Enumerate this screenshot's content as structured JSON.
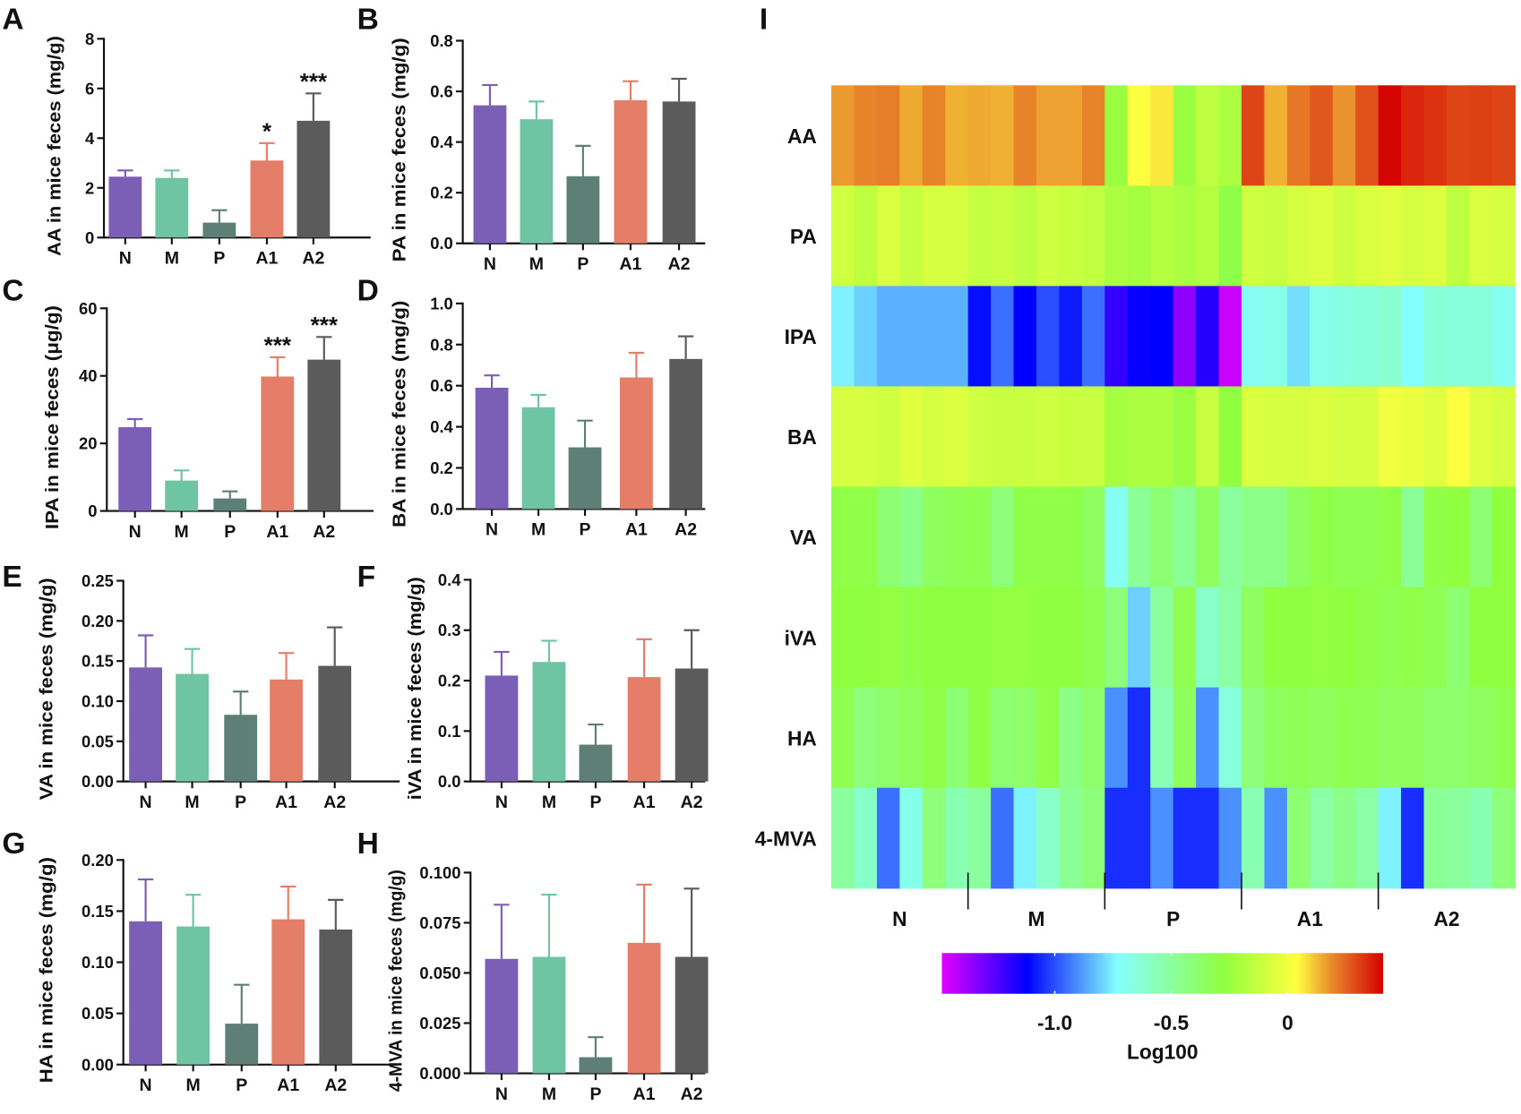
{
  "group_colors": {
    "N": "#7b5eb5",
    "M": "#6fc4a4",
    "P": "#5e7f76",
    "A1": "#e47e69",
    "A2": "#5b5b5b"
  },
  "chart_data": [
    {
      "panel": "A",
      "type": "bar",
      "categories": [
        "N",
        "M",
        "P",
        "A1",
        "A2"
      ],
      "ylabel": "AA in mice feces (mg/g)",
      "ylim": [
        0,
        8
      ],
      "yticks": [
        "0",
        "2",
        "4",
        "6",
        "8"
      ],
      "ytick_values": [
        0,
        2,
        4,
        6,
        8
      ],
      "values": [
        2.45,
        2.4,
        0.6,
        3.1,
        4.7
      ],
      "error_upper": [
        2.7,
        2.7,
        1.1,
        3.8,
        5.8
      ],
      "annotations": [
        "",
        "",
        "",
        "*",
        "***"
      ]
    },
    {
      "panel": "B",
      "type": "bar",
      "categories": [
        "N",
        "M",
        "P",
        "A1",
        "A2"
      ],
      "ylabel": "PA in mice feces (mg/g)",
      "ylim": [
        0,
        0.8
      ],
      "yticks": [
        "0.0",
        "0.2",
        "0.4",
        "0.6",
        "0.8"
      ],
      "ytick_values": [
        0,
        0.2,
        0.4,
        0.6,
        0.8
      ],
      "values": [
        0.545,
        0.49,
        0.265,
        0.565,
        0.56
      ],
      "error_upper": [
        0.625,
        0.56,
        0.385,
        0.64,
        0.65
      ],
      "annotations": [
        "",
        "",
        "",
        "",
        ""
      ]
    },
    {
      "panel": "C",
      "type": "bar",
      "categories": [
        "N",
        "M",
        "P",
        "A1",
        "A2"
      ],
      "ylabel": "IPA in mice feces (μg/g)",
      "ylim": [
        0,
        60
      ],
      "yticks": [
        "0",
        "20",
        "40",
        "60"
      ],
      "ytick_values": [
        0,
        20,
        40,
        60
      ],
      "values": [
        24.8,
        9,
        3.7,
        39.8,
        44.8
      ],
      "error_upper": [
        27.2,
        12,
        5.8,
        45.5,
        51.5
      ],
      "annotations": [
        "",
        "",
        "",
        "***",
        "***"
      ]
    },
    {
      "panel": "D",
      "type": "bar",
      "categories": [
        "N",
        "M",
        "P",
        "A1",
        "A2"
      ],
      "ylabel": "BA in mice feces (mg/g)",
      "ylim": [
        0,
        1.0
      ],
      "yticks": [
        "0.0",
        "0.2",
        "0.4",
        "0.6",
        "0.8",
        "1.0"
      ],
      "ytick_values": [
        0,
        0.2,
        0.4,
        0.6,
        0.8,
        1.0
      ],
      "values": [
        0.59,
        0.495,
        0.3,
        0.64,
        0.73
      ],
      "error_upper": [
        0.65,
        0.555,
        0.43,
        0.76,
        0.84
      ],
      "annotations": [
        "",
        "",
        "",
        "",
        ""
      ]
    },
    {
      "panel": "E",
      "type": "bar",
      "categories": [
        "N",
        "M",
        "P",
        "A1",
        "A2"
      ],
      "ylabel": "VA in mice feces (mg/g)",
      "ylim": [
        0,
        0.25
      ],
      "yticks": [
        "0.00",
        "0.05",
        "0.10",
        "0.15",
        "0.20",
        "0.25"
      ],
      "ytick_values": [
        0,
        0.05,
        0.1,
        0.15,
        0.2,
        0.25
      ],
      "values": [
        0.142,
        0.134,
        0.083,
        0.127,
        0.144
      ],
      "error_upper": [
        0.182,
        0.165,
        0.112,
        0.16,
        0.192
      ],
      "annotations": [
        "",
        "",
        "",
        "",
        ""
      ]
    },
    {
      "panel": "F",
      "type": "bar",
      "categories": [
        "N",
        "M",
        "P",
        "A1",
        "A2"
      ],
      "ylabel": "iVA in mice feces (mg/g)",
      "ylim": [
        0,
        0.4
      ],
      "yticks": [
        "0.0",
        "0.1",
        "0.2",
        "0.3",
        "0.4"
      ],
      "ytick_values": [
        0,
        0.1,
        0.2,
        0.3,
        0.4
      ],
      "values": [
        0.21,
        0.237,
        0.073,
        0.207,
        0.224
      ],
      "error_upper": [
        0.257,
        0.279,
        0.113,
        0.282,
        0.3
      ],
      "annotations": [
        "",
        "",
        "",
        "",
        ""
      ]
    },
    {
      "panel": "G",
      "type": "bar",
      "categories": [
        "N",
        "M",
        "P",
        "A1",
        "A2"
      ],
      "ylabel": "HA in mice feces (mg/g)",
      "ylim": [
        0,
        0.2
      ],
      "yticks": [
        "0.00",
        "0.05",
        "0.10",
        "0.15",
        "0.20"
      ],
      "ytick_values": [
        0,
        0.05,
        0.1,
        0.15,
        0.2
      ],
      "values": [
        0.14,
        0.135,
        0.04,
        0.142,
        0.132
      ],
      "error_upper": [
        0.181,
        0.166,
        0.078,
        0.174,
        0.161
      ],
      "annotations": [
        "",
        "",
        "",
        "",
        ""
      ]
    },
    {
      "panel": "H",
      "type": "bar",
      "categories": [
        "N",
        "M",
        "P",
        "A1",
        "A2"
      ],
      "ylabel": "4-MVA in mice feces (mg/g)",
      "ylim": [
        0,
        0.1
      ],
      "yticks": [
        "0.000",
        "0.025",
        "0.050",
        "0.075",
        "0.100"
      ],
      "ytick_values": [
        0,
        0.025,
        0.05,
        0.075,
        0.1
      ],
      "values": [
        0.057,
        0.058,
        0.008,
        0.065,
        0.058
      ],
      "error_upper": [
        0.084,
        0.089,
        0.018,
        0.094,
        0.092
      ],
      "annotations": [
        "",
        "",
        "",
        "",
        ""
      ]
    },
    {
      "panel": "I",
      "type": "heatmap",
      "rows": [
        "AA",
        "PA",
        "IPA",
        "BA",
        "VA",
        "iVA",
        "HA",
        "4-MVA"
      ],
      "groups": [
        "N",
        "M",
        "P",
        "A1",
        "A2"
      ],
      "samples_per_group": 6,
      "colorbar": {
        "label": "Log100",
        "ticks": [
          "-1.0",
          "-0.5",
          "0"
        ],
        "tick_values": [
          -1.0,
          -0.5,
          0
        ],
        "range": [
          -1.485,
          0.41
        ],
        "stops": [
          [
            -1.485,
            "#e000ff"
          ],
          [
            -1.12,
            "#0000ff"
          ],
          [
            -0.73,
            "#85ffff"
          ],
          [
            -0.28,
            "#90ff40"
          ],
          [
            0.04,
            "#ffff40"
          ],
          [
            0.19,
            "#e88a2c"
          ],
          [
            0.41,
            "#d40000"
          ]
        ]
      },
      "values": [
        [
          0.17,
          0.2,
          0.21,
          0.15,
          0.2,
          0.14,
          0.15,
          0.14,
          0.2,
          0.16,
          0.16,
          0.2,
          -0.25,
          0.03,
          0.07,
          -0.25,
          -0.15,
          -0.2,
          0.3,
          0.14,
          0.22,
          0.27,
          0.18,
          0.28,
          0.4,
          0.35,
          0.33,
          0.3,
          0.31,
          0.3
        ],
        [
          -0.1,
          -0.15,
          -0.07,
          -0.12,
          -0.08,
          -0.08,
          -0.13,
          -0.12,
          -0.15,
          -0.1,
          -0.12,
          -0.14,
          -0.2,
          -0.22,
          -0.18,
          -0.2,
          -0.17,
          -0.3,
          -0.1,
          -0.12,
          -0.08,
          -0.06,
          -0.1,
          -0.07,
          -0.05,
          -0.08,
          -0.06,
          -0.15,
          -0.07,
          -0.08
        ],
        [
          -0.75,
          -0.8,
          -0.85,
          -0.85,
          -0.85,
          -0.85,
          -1.1,
          -0.95,
          -1.12,
          -1.0,
          -1.08,
          -0.95,
          -1.2,
          -1.13,
          -1.12,
          -1.35,
          -1.18,
          -1.45,
          -0.7,
          -0.68,
          -0.78,
          -0.68,
          -0.66,
          -0.65,
          -0.62,
          -0.72,
          -0.64,
          -0.65,
          -0.64,
          -0.7
        ],
        [
          -0.08,
          -0.08,
          -0.1,
          -0.05,
          -0.08,
          -0.06,
          -0.1,
          -0.12,
          -0.12,
          -0.1,
          -0.12,
          -0.12,
          -0.22,
          -0.2,
          -0.2,
          -0.25,
          -0.12,
          -0.28,
          -0.07,
          -0.08,
          -0.08,
          -0.06,
          -0.08,
          -0.08,
          0.0,
          -0.02,
          -0.05,
          0.03,
          -0.05,
          -0.08
        ],
        [
          -0.3,
          -0.3,
          -0.4,
          -0.45,
          -0.35,
          -0.33,
          -0.32,
          -0.42,
          -0.3,
          -0.3,
          -0.3,
          -0.35,
          -0.7,
          -0.48,
          -0.4,
          -0.48,
          -0.35,
          -0.5,
          -0.45,
          -0.45,
          -0.35,
          -0.3,
          -0.32,
          -0.32,
          -0.3,
          -0.48,
          -0.3,
          -0.28,
          -0.4,
          -0.28
        ],
        [
          -0.28,
          -0.28,
          -0.27,
          -0.3,
          -0.28,
          -0.28,
          -0.28,
          -0.27,
          -0.27,
          -0.28,
          -0.28,
          -0.32,
          -0.42,
          -0.8,
          -0.5,
          -0.32,
          -0.6,
          -0.52,
          -0.35,
          -0.28,
          -0.28,
          -0.27,
          -0.28,
          -0.3,
          -0.32,
          -0.3,
          -0.33,
          -0.4,
          -0.28,
          -0.28
        ],
        [
          -0.32,
          -0.42,
          -0.38,
          -0.35,
          -0.3,
          -0.4,
          -0.3,
          -0.4,
          -0.38,
          -0.3,
          -0.45,
          -0.38,
          -0.9,
          -1.05,
          -0.55,
          -0.35,
          -0.9,
          -0.65,
          -0.42,
          -0.35,
          -0.33,
          -0.35,
          -0.32,
          -0.33,
          -0.35,
          -0.35,
          -0.38,
          -0.38,
          -0.35,
          -0.32
        ],
        [
          -0.5,
          -0.6,
          -0.95,
          -0.68,
          -0.42,
          -0.55,
          -0.5,
          -0.95,
          -0.75,
          -0.6,
          -0.48,
          -0.42,
          -1.05,
          -1.05,
          -0.9,
          -1.05,
          -1.05,
          -0.9,
          -0.55,
          -0.9,
          -0.4,
          -0.52,
          -0.45,
          -0.52,
          -0.75,
          -1.05,
          -0.48,
          -0.5,
          -0.55,
          -0.42
        ]
      ]
    }
  ]
}
